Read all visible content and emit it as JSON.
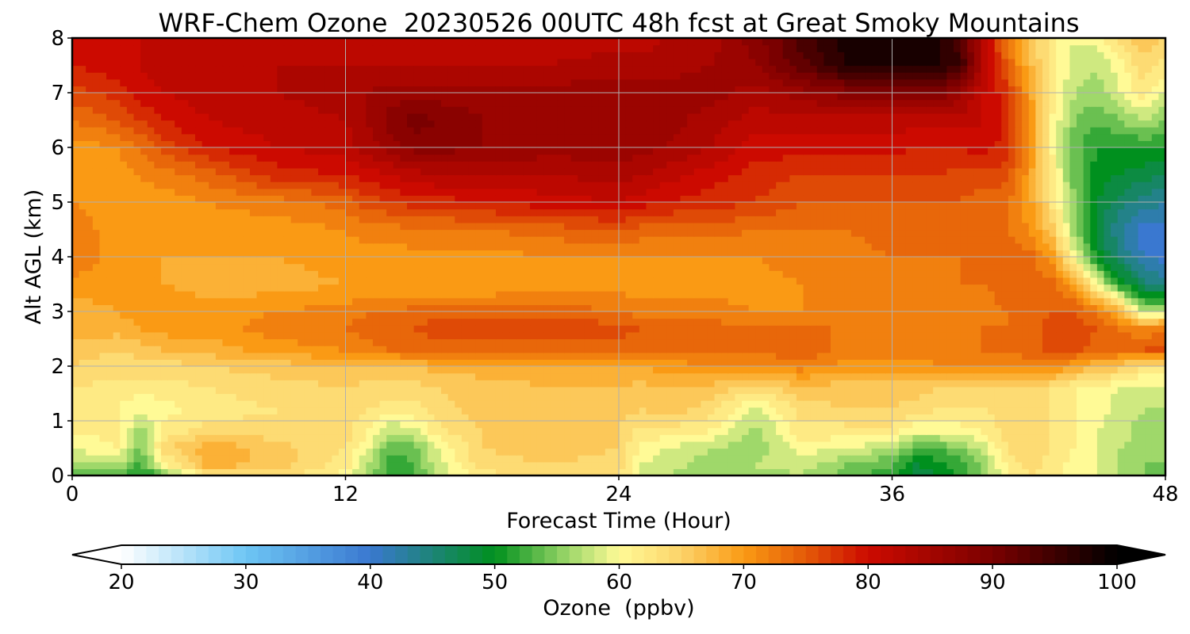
{
  "chart_data": {
    "type": "heatmap",
    "title": "WRF-Chem Ozone  20230526 00UTC 48h fcst at Great Smoky Mountains",
    "xlabel": "Forecast Time (Hour)",
    "ylabel": "Alt AGL (km)",
    "xlim": [
      0,
      48
    ],
    "ylim": [
      0,
      8
    ],
    "x_ticks": [
      "0",
      "12",
      "24",
      "36",
      "48"
    ],
    "y_ticks": [
      "0",
      "1",
      "2",
      "3",
      "4",
      "5",
      "6",
      "7",
      "8"
    ],
    "grid": true,
    "colorbar": {
      "label": "Ozone  (ppbv)",
      "range": [
        20,
        100
      ],
      "ticks": [
        "20",
        "30",
        "40",
        "50",
        "60",
        "70",
        "80",
        "90",
        "100"
      ],
      "extend": "both",
      "stops": [
        {
          "value": 20,
          "color": "#ffffff"
        },
        {
          "value": 30,
          "color": "#6ec6f4"
        },
        {
          "value": 40,
          "color": "#3a78d0"
        },
        {
          "value": 50,
          "color": "#00901e"
        },
        {
          "value": 56,
          "color": "#9fd86a"
        },
        {
          "value": 60,
          "color": "#fffa96"
        },
        {
          "value": 65,
          "color": "#fcd36a"
        },
        {
          "value": 70,
          "color": "#fa9a14"
        },
        {
          "value": 75,
          "color": "#e45a08"
        },
        {
          "value": 80,
          "color": "#cc0a00"
        },
        {
          "value": 90,
          "color": "#7a0000"
        },
        {
          "value": 100,
          "color": "#000000"
        }
      ]
    },
    "x_hours": [
      0,
      2,
      3,
      4,
      6,
      9,
      12,
      13,
      14,
      15,
      16,
      18,
      21,
      24,
      25,
      26,
      28,
      30,
      32,
      34,
      36,
      37,
      38,
      39,
      40,
      41,
      42,
      43,
      44,
      45,
      46,
      47,
      48
    ],
    "z_km": [
      0,
      0.2,
      0.5,
      0.8,
      1.2,
      1.6,
      2,
      2.3,
      2.7,
      3,
      3.5,
      4,
      4.5,
      5,
      5.5,
      6,
      6.5,
      7,
      7.5,
      8
    ],
    "ozone_ppbv": [
      [
        53,
        53,
        50,
        54,
        62,
        64,
        60,
        56,
        52,
        53,
        57,
        62,
        64,
        63,
        58,
        57,
        55,
        56,
        57,
        54,
        51,
        48,
        49,
        51,
        55,
        60,
        63,
        62,
        60,
        59,
        57,
        55,
        54
      ],
      [
        56,
        57,
        52,
        60,
        68,
        66,
        62,
        57,
        52,
        53,
        58,
        64,
        65,
        64,
        59,
        58,
        56,
        57,
        58,
        55,
        53,
        49,
        50,
        52,
        56,
        61,
        64,
        62,
        60,
        59,
        57,
        55,
        55
      ],
      [
        59,
        61,
        54,
        64,
        69,
        66,
        63,
        59,
        53,
        54,
        59,
        65,
        66,
        65,
        60,
        59,
        57,
        56,
        60,
        59,
        57,
        53,
        53,
        55,
        58,
        63,
        65,
        63,
        61,
        59,
        57,
        56,
        55
      ],
      [
        61,
        62,
        56,
        62,
        64,
        64,
        64,
        61,
        57,
        58,
        62,
        65,
        66,
        65,
        62,
        62,
        61,
        56,
        62,
        62,
        62,
        59,
        59,
        60,
        61,
        64,
        65,
        63,
        61,
        59,
        58,
        56,
        56
      ],
      [
        62,
        61,
        59,
        60,
        62,
        63,
        64,
        63,
        62,
        62,
        64,
        66,
        66,
        66,
        65,
        66,
        64,
        58,
        64,
        65,
        65,
        64,
        63,
        63,
        63,
        64,
        65,
        63,
        61,
        60,
        58,
        57,
        57
      ],
      [
        63,
        62,
        62,
        62,
        63,
        64,
        65,
        64,
        64,
        64,
        65,
        66,
        67,
        67,
        66,
        67,
        66,
        64,
        66,
        66,
        66,
        66,
        65,
        65,
        65,
        65,
        65,
        63,
        61,
        60,
        59,
        58,
        59
      ],
      [
        65,
        64,
        64,
        64,
        65,
        66,
        67,
        67,
        67,
        67,
        68,
        68,
        68,
        69,
        69,
        70,
        71,
        71,
        72,
        70,
        70,
        70,
        71,
        71,
        72,
        72,
        72,
        71,
        69,
        67,
        66,
        63,
        62
      ],
      [
        66,
        65,
        66,
        67,
        68,
        70,
        71,
        72,
        73,
        74,
        74,
        74,
        74,
        74,
        73,
        73,
        73,
        73,
        75,
        72,
        72,
        72,
        72,
        72,
        73,
        73,
        74,
        76,
        76,
        74,
        74,
        75,
        76
      ],
      [
        68,
        68,
        69,
        70,
        70,
        72,
        73,
        74,
        75,
        75,
        76,
        76,
        76,
        76,
        75,
        74,
        74,
        73,
        73,
        73,
        72,
        72,
        73,
        73,
        73,
        73,
        74,
        76,
        76,
        75,
        73,
        71,
        73
      ],
      [
        68,
        69,
        70,
        71,
        70,
        71,
        72,
        73,
        73,
        74,
        74,
        74,
        74,
        73,
        72,
        72,
        72,
        71,
        71,
        71,
        71,
        71,
        71,
        71,
        72,
        73,
        74,
        75,
        75,
        73,
        68,
        57,
        58
      ],
      [
        70,
        70,
        69,
        69,
        68,
        68,
        69,
        69,
        69,
        69,
        69,
        69,
        70,
        70,
        70,
        70,
        70,
        70,
        71,
        71,
        72,
        72,
        72,
        73,
        73,
        74,
        74,
        74,
        70,
        60,
        51,
        46,
        44
      ],
      [
        73,
        70,
        69,
        69,
        69,
        69,
        70,
        70,
        70,
        70,
        70,
        70,
        71,
        71,
        71,
        71,
        71,
        71,
        72,
        72,
        73,
        73,
        73,
        73,
        74,
        74,
        74,
        70,
        60,
        50,
        45,
        41,
        40
      ],
      [
        72,
        70,
        70,
        70,
        70,
        70,
        71,
        72,
        72,
        73,
        73,
        73,
        74,
        75,
        74,
        74,
        74,
        73,
        73,
        73,
        74,
        74,
        74,
        74,
        74,
        73,
        71,
        66,
        56,
        48,
        43,
        40,
        40
      ],
      [
        71,
        70,
        70,
        70,
        71,
        72,
        74,
        76,
        77,
        78,
        78,
        79,
        80,
        81,
        80,
        79,
        78,
        77,
        75,
        75,
        75,
        75,
        75,
        75,
        74,
        73,
        70,
        63,
        55,
        49,
        46,
        44,
        43
      ],
      [
        70,
        70,
        71,
        72,
        74,
        78,
        79,
        80,
        81,
        82,
        83,
        83,
        83,
        84,
        83,
        82,
        80,
        78,
        77,
        77,
        77,
        77,
        77,
        76,
        76,
        76,
        70,
        62,
        54,
        50,
        49,
        48,
        47
      ],
      [
        70,
        71,
        73,
        76,
        79,
        81,
        82,
        84,
        86,
        88,
        88,
        87,
        86,
        86,
        86,
        85,
        83,
        80,
        80,
        80,
        80,
        79,
        79,
        79,
        80,
        78,
        71,
        61,
        54,
        51,
        51,
        51,
        51
      ],
      [
        73,
        75,
        77,
        79,
        81,
        82,
        83,
        85,
        88,
        90,
        89,
        87,
        87,
        87,
        86,
        86,
        84,
        82,
        82,
        82,
        82,
        82,
        82,
        82,
        81,
        79,
        71,
        61,
        55,
        53,
        55,
        57,
        55
      ],
      [
        76,
        78,
        80,
        81,
        82,
        83,
        84,
        85,
        86,
        86,
        86,
        86,
        86,
        86,
        86,
        86,
        86,
        84,
        86,
        88,
        90,
        89,
        89,
        86,
        81,
        78,
        70,
        62,
        57,
        56,
        59,
        62,
        59
      ],
      [
        79,
        80,
        81,
        82,
        82,
        83,
        83,
        83,
        83,
        83,
        83,
        83,
        83,
        84,
        84,
        84,
        85,
        87,
        92,
        97,
        98,
        98,
        97,
        95,
        83,
        75,
        68,
        62,
        58,
        57,
        60,
        64,
        62
      ],
      [
        80,
        81,
        81,
        81,
        82,
        82,
        82,
        82,
        82,
        82,
        82,
        82,
        82,
        82,
        82,
        83,
        84,
        88,
        94,
        98,
        99,
        99,
        98,
        94,
        82,
        73,
        66,
        62,
        59,
        60,
        64,
        67,
        65
      ]
    ]
  }
}
